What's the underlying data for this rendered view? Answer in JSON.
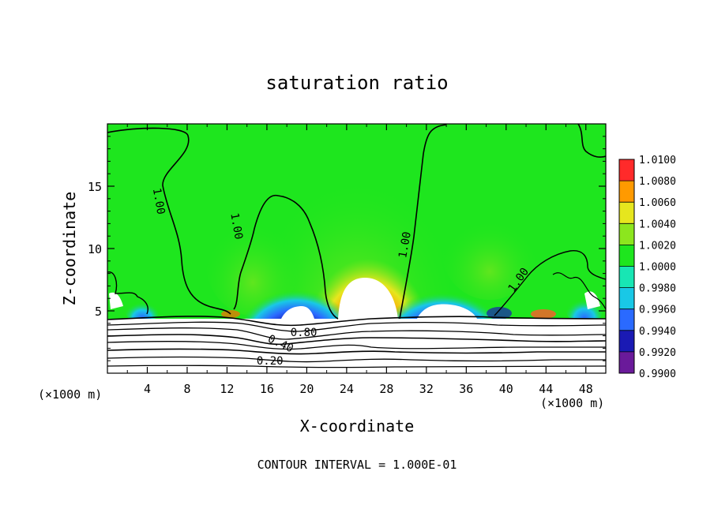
{
  "chart_data": {
    "type": "heatmap",
    "title": "saturation ratio",
    "xlabel": "X-coordinate",
    "ylabel": "Z-coordinate",
    "x_unit_left": "(×1000 m)",
    "x_unit_right": "(×1000 m)",
    "xlim": [
      0,
      50
    ],
    "ylim": [
      0,
      20
    ],
    "x_ticks": [
      4,
      8,
      12,
      16,
      20,
      24,
      28,
      32,
      36,
      40,
      44,
      48
    ],
    "y_ticks": [
      5,
      10,
      15
    ],
    "footer": "CONTOUR INTERVAL = 1.000E-01",
    "colorbar": {
      "levels": [
        0.99,
        0.992,
        0.994,
        0.996,
        0.998,
        1.0,
        1.002,
        1.004,
        1.006,
        1.008,
        1.01
      ],
      "labels": [
        "1.0100",
        "1.0080",
        "1.0060",
        "1.0040",
        "1.0020",
        "1.0000",
        "0.9980",
        "0.9960",
        "0.9940",
        "0.9920",
        "0.9900"
      ],
      "colors": [
        "#6a1a9a",
        "#1a1ab4",
        "#2a6aff",
        "#19c8e6",
        "#18e6b4",
        "#1ee61e",
        "#8ce61e",
        "#e6e61e",
        "#ff9a00",
        "#ff2a2a",
        "#ff8c8c"
      ]
    },
    "contour_labels": [
      {
        "text": "1.00",
        "x": 5.2,
        "z": 13.8,
        "angle": 80
      },
      {
        "text": "1.00",
        "x": 13.0,
        "z": 11.8,
        "angle": 80
      },
      {
        "text": "1.00",
        "x": 29.8,
        "z": 10.3,
        "angle": -80
      },
      {
        "text": "1.00",
        "x": 41.2,
        "z": 7.5,
        "angle": -55
      },
      {
        "text": "0.80",
        "x": 19.7,
        "z": 3.3,
        "angle": 0
      },
      {
        "text": "0.40",
        "x": 17.4,
        "z": 2.4,
        "angle": 25
      },
      {
        "text": "0.20",
        "x": 16.3,
        "z": 1.0,
        "angle": 0
      }
    ]
  }
}
